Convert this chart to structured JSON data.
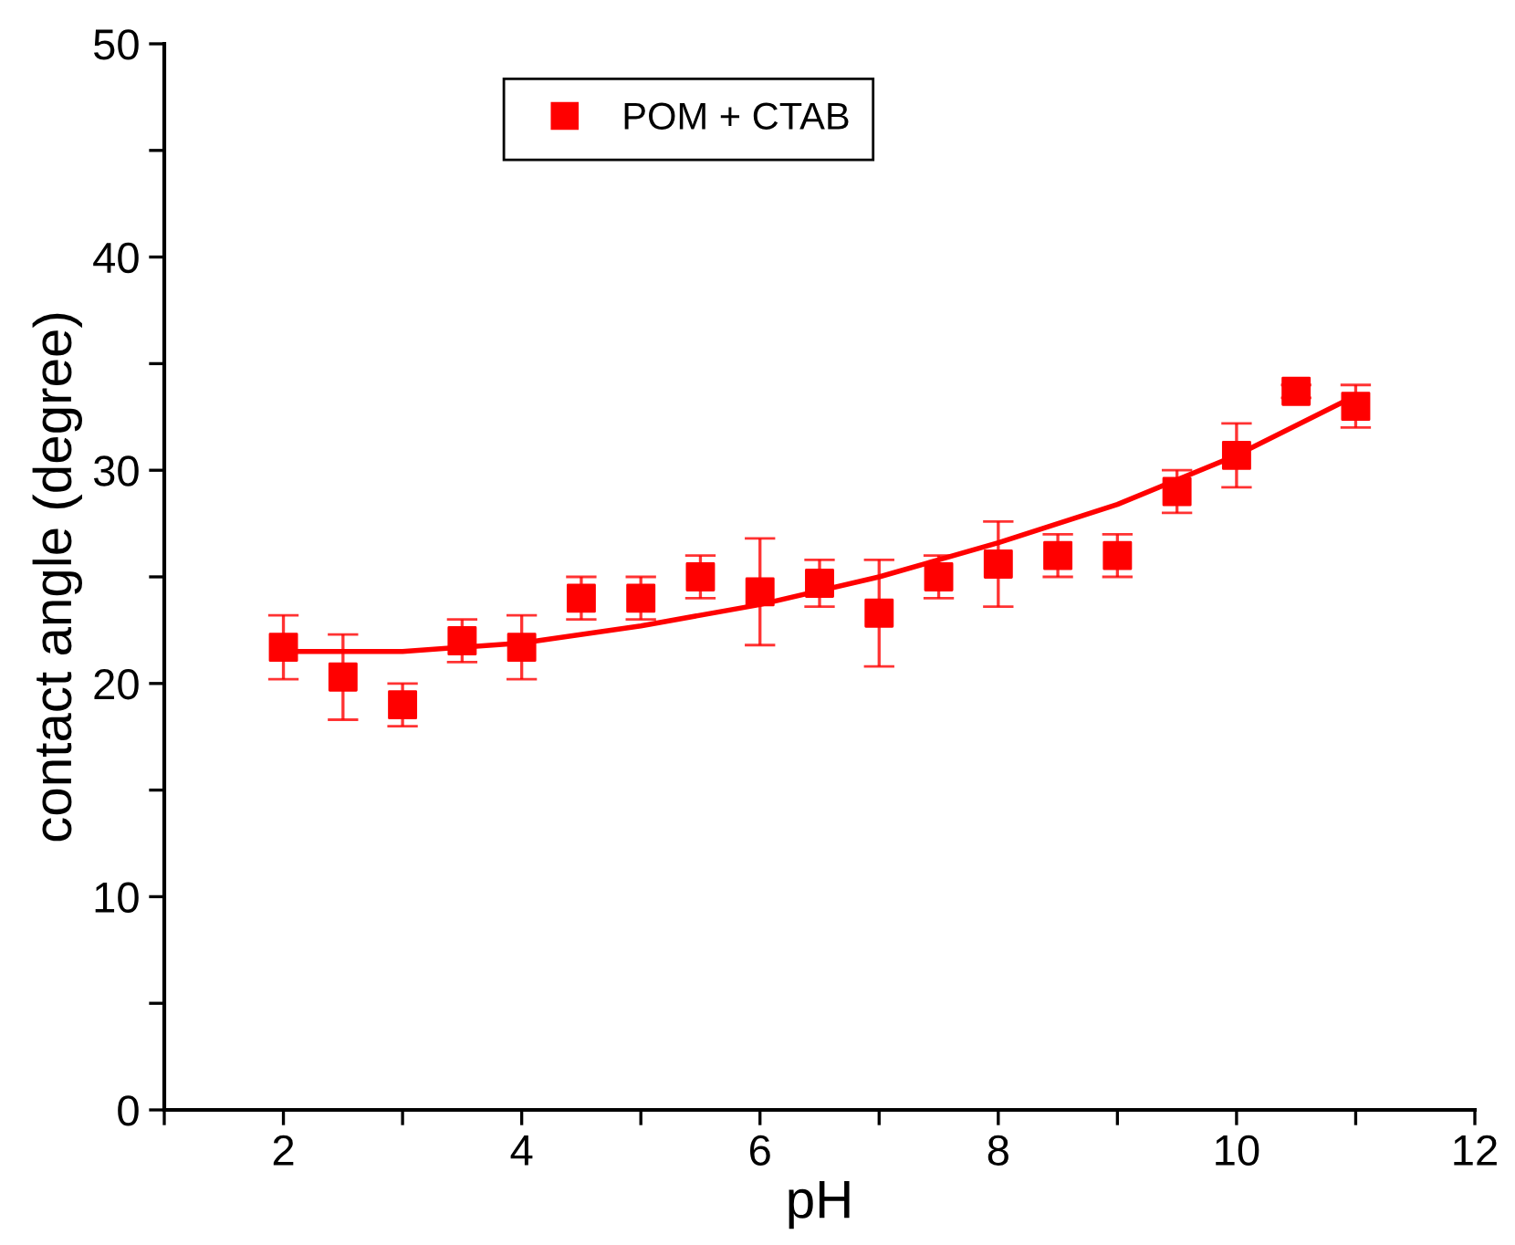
{
  "chart_data": {
    "type": "scatter",
    "xlabel": "pH",
    "ylabel": "contact angle (degree)",
    "x": [
      2,
      2.5,
      3,
      3.5,
      4,
      4.5,
      5,
      5.5,
      6,
      6.5,
      7,
      7.5,
      8,
      8.5,
      9,
      9.5,
      10,
      10.5,
      11
    ],
    "series": [
      {
        "name": "POM + CTAB",
        "color": "#ff0000",
        "marker": "square",
        "values": [
          21.7,
          20.3,
          19.0,
          22.0,
          21.7,
          24.0,
          24.0,
          25.0,
          24.3,
          24.7,
          23.3,
          25.0,
          25.6,
          26.0,
          26.0,
          29.0,
          30.7,
          33.7,
          33.0
        ],
        "errors": [
          1.5,
          2.0,
          1.0,
          1.0,
          1.5,
          1.0,
          1.0,
          1.0,
          2.5,
          1.1,
          2.5,
          1.0,
          2.0,
          1.0,
          1.0,
          1.0,
          1.5,
          0.3,
          1.0
        ]
      },
      {
        "type": "line",
        "color": "#ff0000",
        "marker": "none",
        "line_style": "solid",
        "x": [
          2,
          3,
          4,
          5,
          6,
          7,
          8,
          9,
          10,
          11
        ],
        "values": [
          21.5,
          21.5,
          21.9,
          22.7,
          23.7,
          25.0,
          26.6,
          28.4,
          30.7,
          33.5
        ]
      }
    ],
    "xlim": [
      1,
      12
    ],
    "xticks": [
      {
        "value": 1,
        "label": null
      },
      2,
      {
        "value": 3,
        "label": null
      },
      4,
      {
        "value": 5,
        "label": null
      },
      6,
      {
        "value": 7,
        "label": null
      },
      8,
      {
        "value": 9,
        "label": null
      },
      10,
      {
        "value": 11,
        "label": null
      },
      12
    ],
    "ylim": [
      0,
      50
    ],
    "yticks": [
      0,
      {
        "value": 5,
        "label": null
      },
      10,
      {
        "value": 15,
        "label": null
      },
      20,
      {
        "value": 25,
        "label": null
      },
      30,
      {
        "value": 35,
        "label": null
      },
      40,
      {
        "value": 45,
        "label": null
      },
      50
    ],
    "grid": false,
    "legend": "top"
  }
}
